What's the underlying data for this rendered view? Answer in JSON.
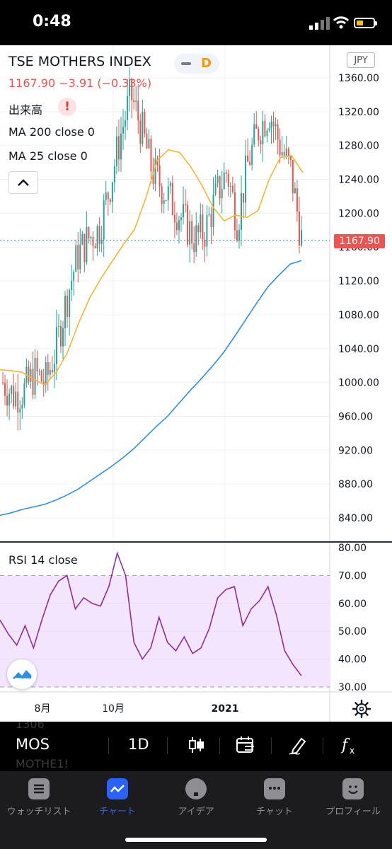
{
  "status_bar": {
    "time": "0:48"
  },
  "chart_header": {
    "title": "TSE MOTHERS INDEX",
    "chip_label": "D",
    "price": "1167.90",
    "change": "−3.91",
    "change_pct": "(−0.33%)",
    "alert_mark": "!",
    "volume_label": "出来高",
    "ma200_label": "MA 200 close 0",
    "ma25_label": "MA 25 close 0"
  },
  "currency": "JPY",
  "last_price_tag": "1167.90",
  "rsi_label": "RSI 14 close",
  "colors": {
    "up": "#26a69a",
    "down": "#ef5350",
    "ma25": "#f5b731",
    "ma200": "#2e8fe3",
    "rsi": "#8e2fa0",
    "rsi_band": "#f3e5fd",
    "accent": "#2962ff"
  },
  "chart_data": [
    {
      "type": "candlestick",
      "y_ticks": [
        "1360.00",
        "1320.00",
        "1280.00",
        "1240.00",
        "1200.00",
        "1160.00",
        "1120.00",
        "1080.00",
        "1040.00",
        "1000.00",
        "960.00",
        "920.00",
        "880.00",
        "840.00"
      ],
      "ylim": [
        808,
        1372
      ],
      "x_ticks": [
        "8月",
        "10月",
        "2021"
      ],
      "series": [
        {
          "name": "MA 200 close 0",
          "values": [
            843,
            846,
            850,
            853,
            856,
            861,
            867,
            874,
            883,
            892,
            901,
            911,
            922,
            935,
            948,
            960,
            975,
            990,
            1004,
            1019,
            1035,
            1054,
            1074,
            1094,
            1113,
            1127,
            1140,
            1144
          ]
        },
        {
          "name": "MA 25 close 0",
          "values": [
            1015,
            1014,
            1012,
            1004,
            997,
            1012,
            1035,
            1070,
            1100,
            1123,
            1143,
            1163,
            1181,
            1218,
            1262,
            1275,
            1272,
            1255,
            1233,
            1207,
            1191,
            1198,
            1195,
            1203,
            1240,
            1266,
            1268,
            1248
          ]
        }
      ],
      "last_close": 1167.9
    },
    {
      "type": "line",
      "y_ticks": [
        "80.00",
        "70.00",
        "60.00",
        "50.00",
        "40.00",
        "30.00"
      ],
      "ylim": [
        28,
        81
      ],
      "band": [
        30,
        70
      ],
      "series": [
        {
          "name": "RSI 14 close",
          "values": [
            54,
            49,
            45,
            52,
            44,
            54,
            63,
            68,
            70,
            58,
            62,
            60,
            59,
            66,
            78,
            70,
            46,
            40,
            44,
            55,
            46,
            43,
            48,
            42,
            44,
            51,
            62,
            65,
            66,
            52,
            58,
            61,
            66,
            56,
            43,
            38,
            34
          ]
        }
      ]
    }
  ],
  "toolbar": {
    "ghost_top": "1306",
    "symbol": "MOS",
    "ghost_bottom": "MOTHE1!",
    "interval": "1D",
    "icons": [
      "candles-icon",
      "replay-icon",
      "drawing-pen-icon",
      "indicators-fx-icon"
    ]
  },
  "tabs": [
    {
      "label": "ウォッチリスト",
      "icon": "watchlist-icon"
    },
    {
      "label": "チャート",
      "icon": "chart-icon",
      "active": true
    },
    {
      "label": "アイデア",
      "icon": "ideas-icon"
    },
    {
      "label": "チャット",
      "icon": "chat-icon"
    },
    {
      "label": "プロフィール",
      "icon": "profile-icon"
    }
  ]
}
